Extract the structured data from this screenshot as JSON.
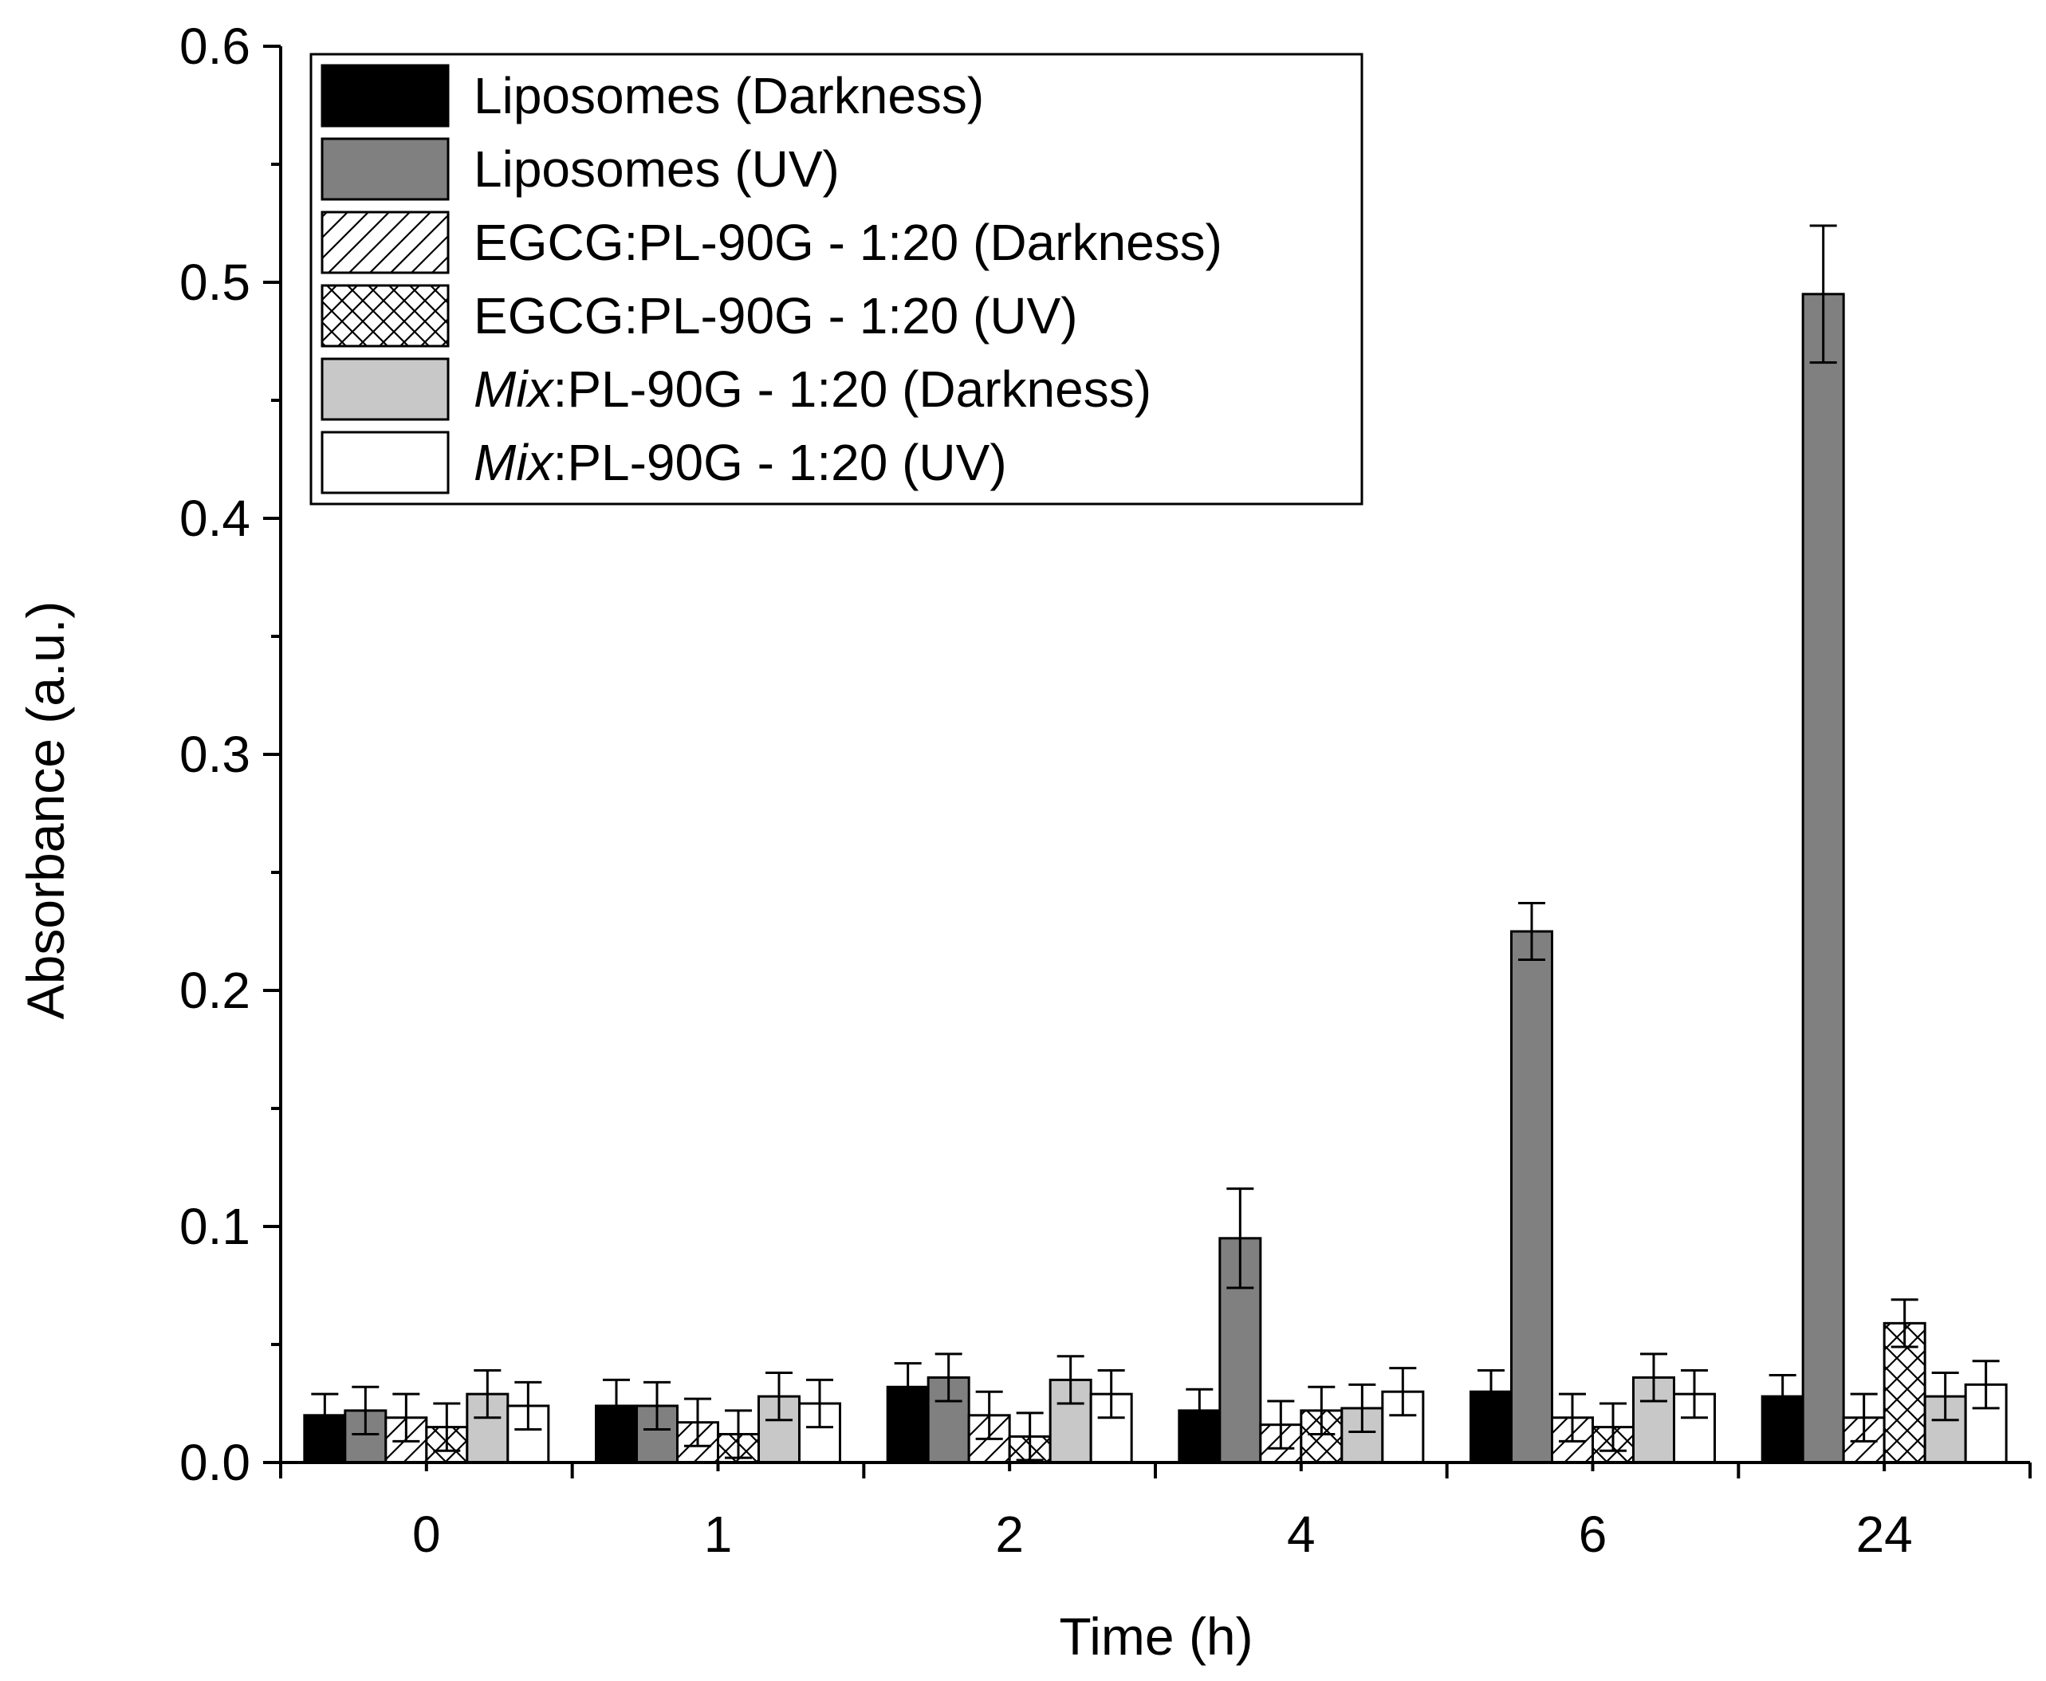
{
  "chart_data": {
    "type": "bar",
    "title": "",
    "xlabel": "Time (h)",
    "ylabel": "Absorbance (a.u.)",
    "ylim": [
      0.0,
      0.6
    ],
    "yticks": [
      "0.0",
      "0.1",
      "0.2",
      "0.3",
      "0.4",
      "0.5",
      "0.6"
    ],
    "grid": false,
    "legend_position": "top-left",
    "categories": [
      "0",
      "1",
      "2",
      "4",
      "6",
      "24"
    ],
    "series": [
      {
        "name": "Liposomes (Darkness)",
        "legend_italic": "",
        "legend_rest": "Liposomes (Darkness)",
        "fill": "#000000",
        "pattern": "solid",
        "values": [
          0.02,
          0.024,
          0.032,
          0.022,
          0.03,
          0.028
        ],
        "errors": [
          0.009,
          0.011,
          0.01,
          0.009,
          0.009,
          0.009
        ]
      },
      {
        "name": "Liposomes (UV)",
        "legend_italic": "",
        "legend_rest": "Liposomes (UV)",
        "fill": "#808080",
        "pattern": "solid",
        "values": [
          0.022,
          0.024,
          0.036,
          0.095,
          0.225,
          0.495
        ],
        "errors": [
          0.01,
          0.01,
          0.01,
          0.021,
          0.012,
          0.029
        ]
      },
      {
        "name": "EGCG:PL-90G - 1:20 (Darkness)",
        "legend_italic": "",
        "legend_rest": "EGCG:PL-90G - 1:20 (Darkness)",
        "fill": "#ffffff",
        "pattern": "diagonal",
        "values": [
          0.019,
          0.017,
          0.02,
          0.016,
          0.019,
          0.019
        ],
        "errors": [
          0.01,
          0.01,
          0.01,
          0.01,
          0.01,
          0.01
        ]
      },
      {
        "name": "EGCG:PL-90G - 1:20 (UV)",
        "legend_italic": "",
        "legend_rest": "EGCG:PL-90G - 1:20 (UV)",
        "fill": "#ffffff",
        "pattern": "crosshatch",
        "values": [
          0.015,
          0.012,
          0.011,
          0.022,
          0.015,
          0.059
        ],
        "errors": [
          0.01,
          0.01,
          0.01,
          0.01,
          0.01,
          0.01
        ]
      },
      {
        "name": "Mix:PL-90G - 1:20 (Darkness)",
        "legend_italic": "Mix",
        "legend_rest": ":PL-90G - 1:20 (Darkness)",
        "fill": "#c8c8c8",
        "pattern": "solid",
        "values": [
          0.029,
          0.028,
          0.035,
          0.023,
          0.036,
          0.028
        ],
        "errors": [
          0.01,
          0.01,
          0.01,
          0.01,
          0.01,
          0.01
        ]
      },
      {
        "name": "Mix:PL-90G - 1:20 (UV)",
        "legend_italic": "Mix",
        "legend_rest": ":PL-90G - 1:20 (UV)",
        "fill": "#ffffff",
        "pattern": "solid",
        "values": [
          0.024,
          0.025,
          0.029,
          0.03,
          0.029,
          0.033
        ],
        "errors": [
          0.01,
          0.01,
          0.01,
          0.01,
          0.01,
          0.01
        ]
      }
    ]
  }
}
